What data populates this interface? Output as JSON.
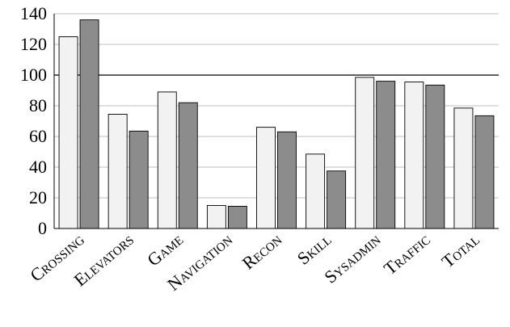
{
  "chart_data": {
    "type": "bar",
    "categories": [
      "Crossing",
      "Elevators",
      "Game",
      "Navigation",
      "Recon",
      "Skill",
      "Sysadmin",
      "Traffic",
      "Total"
    ],
    "series": [
      {
        "values": [
          125,
          74.5,
          89,
          15,
          66,
          48.5,
          98.5,
          95.5,
          78.5
        ],
        "color": "#f2f2f2"
      },
      {
        "values": [
          136,
          63.5,
          82,
          14.5,
          63,
          37.5,
          96,
          93.5,
          73.5
        ],
        "color": "#8c8c8c"
      }
    ],
    "title": "",
    "xlabel": "",
    "ylabel": "",
    "ylim": [
      0,
      140
    ],
    "yticks": [
      0,
      20,
      40,
      60,
      80,
      100,
      120,
      140
    ],
    "ytick_labels": [
      "0",
      "20",
      "40",
      "60",
      "80",
      "100",
      "120",
      "140"
    ],
    "grid": true,
    "reference_line": 100,
    "legend": "none"
  }
}
